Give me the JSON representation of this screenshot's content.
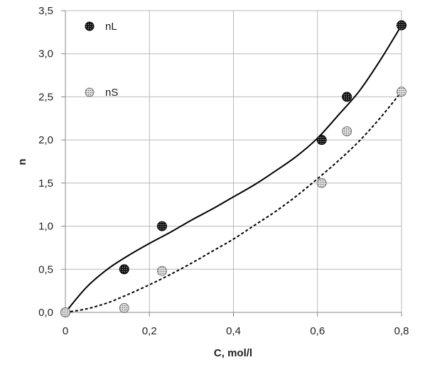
{
  "chart_data": {
    "type": "scatter",
    "title": "",
    "xlabel": "C, mol/l",
    "ylabel": "n",
    "xlim": [
      0,
      0.8
    ],
    "ylim": [
      0,
      3.5
    ],
    "xticks": [
      "0",
      "0,2",
      "0,4",
      "0,6",
      "0,8"
    ],
    "yticks": [
      "0,0",
      "0,5",
      "1,0",
      "1,5",
      "2,0",
      "2,5",
      "3,0",
      "3,5"
    ],
    "grid": true,
    "legend_position": "top-left",
    "series": [
      {
        "name": "nL",
        "marker": "dark-dotted-circle",
        "color": "#222222",
        "x": [
          0,
          0.14,
          0.23,
          0.61,
          0.67,
          0.8
        ],
        "y": [
          0,
          0.5,
          1.0,
          2.0,
          2.5,
          3.33
        ],
        "fit": {
          "style": "solid",
          "x": [
            0,
            0.05,
            0.1,
            0.15,
            0.2,
            0.25,
            0.3,
            0.35,
            0.4,
            0.45,
            0.5,
            0.55,
            0.6,
            0.65,
            0.7,
            0.75,
            0.8
          ],
          "y": [
            0,
            0.29,
            0.5,
            0.66,
            0.8,
            0.93,
            1.07,
            1.2,
            1.34,
            1.48,
            1.64,
            1.81,
            2.02,
            2.29,
            2.57,
            2.93,
            3.33
          ]
        }
      },
      {
        "name": "nS",
        "marker": "light-dotted-circle",
        "color": "#888888",
        "x": [
          0,
          0.14,
          0.23,
          0.61,
          0.67,
          0.8
        ],
        "y": [
          0,
          0.05,
          0.48,
          1.5,
          2.1,
          2.56
        ],
        "fit": {
          "style": "dashed",
          "x": [
            0,
            0.05,
            0.1,
            0.15,
            0.2,
            0.25,
            0.3,
            0.35,
            0.4,
            0.45,
            0.5,
            0.55,
            0.6,
            0.65,
            0.7,
            0.75,
            0.8
          ],
          "y": [
            0,
            0.04,
            0.11,
            0.21,
            0.32,
            0.44,
            0.57,
            0.71,
            0.85,
            1.01,
            1.17,
            1.35,
            1.55,
            1.76,
            1.99,
            2.26,
            2.56
          ]
        }
      }
    ]
  }
}
